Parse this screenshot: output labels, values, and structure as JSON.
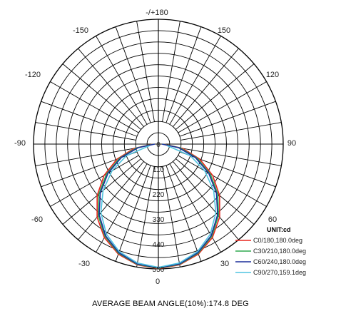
{
  "chart_data": {
    "type": "polar",
    "angle_labels": [
      "-/+180",
      "150",
      "120",
      "90",
      "60",
      "30",
      "0",
      "-30",
      "-60",
      "-90",
      "-120",
      "-150"
    ],
    "radial_ticks": [
      "0",
      "110",
      "220",
      "330",
      "440",
      "550"
    ],
    "rmax": 550,
    "unit_label": "UNIT:cd",
    "series": [
      {
        "name": "C0/180,180.0deg",
        "color": "#e8261f",
        "width": 90.0,
        "angles": [
          0,
          10,
          20,
          30,
          40,
          50,
          60,
          70,
          80,
          90
        ],
        "values": [
          549,
          540,
          516,
          476,
          420,
          352,
          276,
          194,
          108,
          24
        ]
      },
      {
        "name": "C30/210,180.0deg",
        "color": "#2fa84f",
        "width": 90.0,
        "angles": [
          0,
          10,
          20,
          30,
          40,
          50,
          60,
          70,
          80,
          90
        ],
        "values": [
          547,
          538,
          512,
          470,
          412,
          342,
          264,
          182,
          98,
          20
        ]
      },
      {
        "name": "C60/240,180.0deg",
        "color": "#1b2f9a",
        "width": 90.0,
        "angles": [
          0,
          10,
          20,
          30,
          40,
          50,
          60,
          70,
          80,
          90
        ],
        "values": [
          545,
          536,
          509,
          466,
          406,
          334,
          256,
          174,
          90,
          16
        ]
      },
      {
        "name": "C90/270,159.1deg",
        "color": "#4fc4e0",
        "width": 79.55,
        "angles": [
          0,
          10,
          20,
          30,
          40,
          50,
          60,
          70,
          80
        ],
        "values": [
          543,
          532,
          504,
          458,
          394,
          318,
          236,
          150,
          40
        ]
      }
    ]
  },
  "footer": {
    "beam_angle_text": "AVERAGE BEAM ANGLE(10%):174.8 DEG"
  }
}
